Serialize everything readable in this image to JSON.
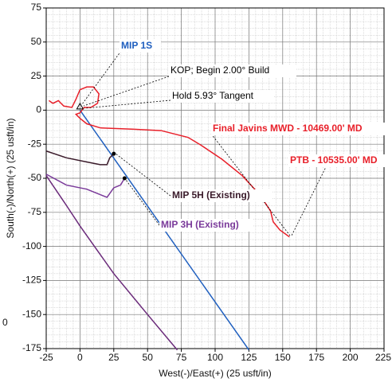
{
  "chart_data": {
    "type": "line",
    "x_label": "West(-)/East(+) (25 usft/in)",
    "y_label": "South(-)/North(+) (25 usft/in)",
    "xlim": [
      -25,
      225
    ],
    "ylim": [
      -175,
      75
    ],
    "xticks": [
      -25,
      0,
      25,
      50,
      75,
      100,
      125,
      150,
      175,
      200,
      225
    ],
    "yticks": [
      -175,
      -150,
      -125,
      -100,
      -75,
      -50,
      -25,
      0,
      25,
      50,
      75
    ],
    "grid": true,
    "series": [
      {
        "name": "MIP 1S",
        "color": "#1f5fbf",
        "x": [
          0,
          125
        ],
        "values": [
          0,
          -176
        ]
      },
      {
        "name": "Final Javins MWD - 10469.00' MD",
        "color": "#e8202a",
        "x": [
          -23,
          -20,
          -16,
          -12,
          -6,
          -3,
          0,
          5,
          10,
          14,
          13,
          8,
          3,
          0,
          -3,
          0,
          5,
          15,
          40,
          60,
          80,
          90,
          105,
          120,
          133,
          141,
          143,
          148,
          155
        ],
        "values": [
          7,
          5,
          7,
          3,
          2,
          8,
          15,
          17,
          17,
          12,
          5,
          2,
          2,
          -2,
          -3,
          -6,
          -10,
          -13,
          -14,
          -15,
          -20,
          -26,
          -36,
          -48,
          -62,
          -74,
          -82,
          -88,
          -93
        ]
      },
      {
        "name": "MIP 5H (Existing)",
        "color": "#3a1a2a",
        "x": [
          -25,
          -10,
          5,
          15,
          20,
          22,
          25
        ],
        "values": [
          -30,
          -35,
          -38,
          -40,
          -40,
          -35,
          -32
        ]
      },
      {
        "name": "MIP 3H (Existing)",
        "color": "#7a3a9a",
        "x": [
          -25,
          -10,
          5,
          15,
          20,
          25,
          30,
          33
        ],
        "values": [
          -47,
          -55,
          -58,
          -62,
          -64,
          -57,
          -55,
          -50
        ]
      },
      {
        "color": "#6a2a7a",
        "x": [
          -25,
          -10,
          0,
          25,
          50,
          72
        ],
        "values": [
          -48,
          -70,
          -85,
          -120,
          -150,
          -176
        ]
      }
    ],
    "annotations": [
      "KOP; Begin 2.00° Build",
      "Hold 5.93° Tangent",
      "PTB - 10535.00' MD"
    ],
    "edge_text": "0"
  }
}
